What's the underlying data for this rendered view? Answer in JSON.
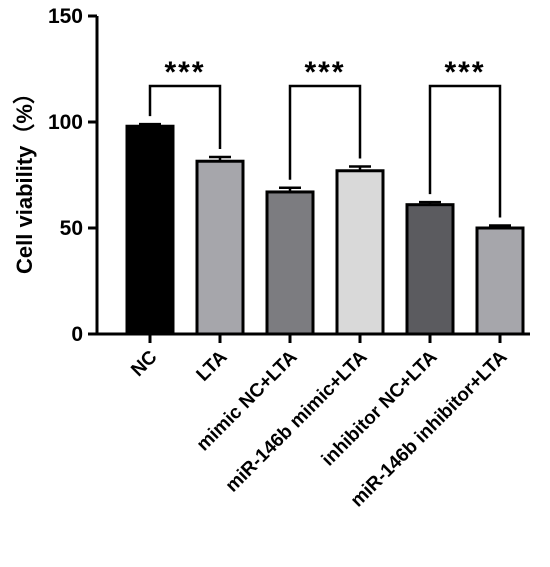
{
  "chart_data": {
    "type": "bar",
    "categories": [
      "NC",
      "LTA",
      "mimic NC+LTA",
      "miR-146b mimic+LTA",
      "inhibitor NC+LTA",
      "miR-146b inhibitor+LTA"
    ],
    "values": [
      98,
      81.5,
      67,
      77,
      61,
      50
    ],
    "errors": [
      1.0,
      2.0,
      2.0,
      2.0,
      1.2,
      1.2
    ],
    "bar_colors": [
      "#000000",
      "#a6a6ab",
      "#7c7c80",
      "#d9d9d9",
      "#5b5b5f",
      "#a6a6ab"
    ],
    "title": "",
    "xlabel": "",
    "ylabel": "Cell viability（%）",
    "ylim": [
      0,
      150
    ],
    "yticks": [
      0,
      50,
      100,
      150
    ],
    "grid": false,
    "significance": [
      {
        "from": 0,
        "to": 1,
        "label": "***"
      },
      {
        "from": 2,
        "to": 3,
        "label": "***"
      },
      {
        "from": 4,
        "to": 5,
        "label": "***"
      }
    ]
  }
}
